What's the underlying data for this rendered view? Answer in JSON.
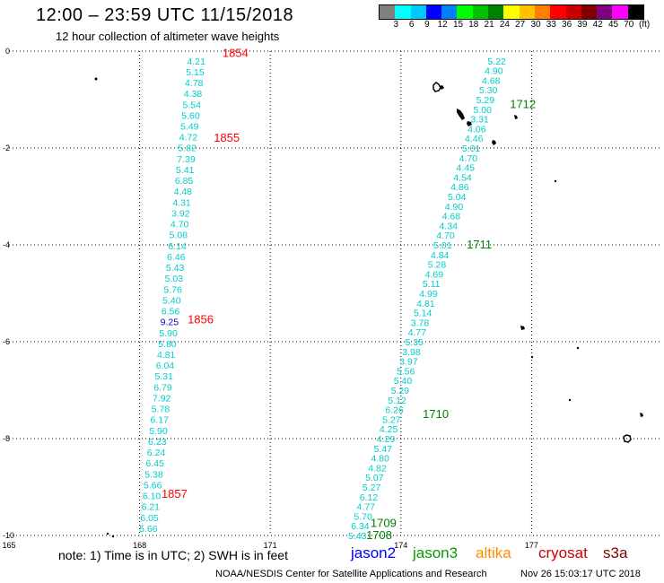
{
  "header": {
    "title": "12:00  –  23:59  UTC  11/15/2018",
    "subtitle": "12 hour collection of altimeter wave heights"
  },
  "legend": {
    "colors": [
      "#808080",
      "#00ffff",
      "#00c8ff",
      "#0000ff",
      "#0080ff",
      "#00ff00",
      "#00c000",
      "#008000",
      "#ffff00",
      "#ffc000",
      "#ff8000",
      "#ff0000",
      "#c80000",
      "#800000",
      "#800080",
      "#ff00ff",
      "#000000"
    ],
    "labels": [
      "3",
      "6",
      "9",
      "12",
      "15",
      "18",
      "21",
      "24",
      "27",
      "30",
      "33",
      "36",
      "39",
      "42",
      "45",
      "70",
      "(ft)"
    ]
  },
  "axes": {
    "x_ticks": [
      {
        "value": 165,
        "label": "165"
      },
      {
        "value": 168,
        "label": "168"
      },
      {
        "value": 171,
        "label": "171"
      },
      {
        "value": 174,
        "label": "174"
      },
      {
        "value": 177,
        "label": "177"
      }
    ],
    "y_ticks": [
      {
        "value": 0,
        "label": "0"
      },
      {
        "value": -2,
        "label": "-2"
      },
      {
        "value": -4,
        "label": "-4"
      },
      {
        "value": -6,
        "label": "-6"
      },
      {
        "value": -8,
        "label": "-8"
      },
      {
        "value": -10,
        "label": "-10"
      }
    ]
  },
  "tracks": [
    {
      "satellite": "cryosat",
      "lon_start": 169.3,
      "lat_start": -0.2,
      "lon_end": 168.2,
      "lat_end": -9.85,
      "values": [
        "4.21",
        "5.15",
        "4.78",
        "4.38",
        "5.54",
        "5.60",
        "5.49",
        "4.72",
        "5.82",
        "7.39",
        "5.41",
        "6.85",
        "4.48",
        "4.31",
        "3.92",
        "4.70",
        "5.08",
        "6.14",
        "6.46",
        "5.43",
        "5.03",
        "5.76",
        "5.40",
        "6.56",
        "9.25",
        "5.90",
        "5.80",
        "4.81",
        "6.04",
        "5.31",
        "6.79",
        "7.92",
        "5.78",
        "6.17",
        "5.90",
        "6.23",
        "6.24",
        "6.45",
        "5.38",
        "5.66",
        "6.10",
        "6.21",
        "6.05",
        "5.66"
      ]
    },
    {
      "satellite": "jason3",
      "lon_start": 176.2,
      "lat_start": -0.2,
      "lon_end": 173.0,
      "lat_end": -10.0,
      "values": [
        "5.22",
        "4.90",
        "4.68",
        "5.30",
        "5.29",
        "5.00",
        "3.31",
        "4.06",
        "4.46",
        "5.01",
        "4.70",
        "4.45",
        "4.54",
        "4.86",
        "5.04",
        "4.90",
        "4.68",
        "4.34",
        "4.70",
        "5.01",
        "4.84",
        "5.28",
        "4.69",
        "5.11",
        "4.99",
        "4.81",
        "5.14",
        "3.78",
        "4.77",
        "5.35",
        "3.98",
        "3.97",
        "5.56",
        "5.40",
        "5.29",
        "5.12",
        "6.26",
        "5.27",
        "4.25",
        "4.29",
        "5.47",
        "4.80",
        "4.82",
        "5.07",
        "5.27",
        "6.12",
        "4.77",
        "5.70",
        "6.34",
        "5.43"
      ]
    }
  ],
  "time_labels": [
    {
      "text": "1854",
      "lon": 170.2,
      "lat": -0.05,
      "color": "#ff0000"
    },
    {
      "text": "1855",
      "lon": 170.0,
      "lat": -1.8,
      "color": "#ff0000"
    },
    {
      "text": "1856",
      "lon": 169.4,
      "lat": -5.55,
      "color": "#ff0000"
    },
    {
      "text": "1857",
      "lon": 168.8,
      "lat": -9.15,
      "color": "#ff0000"
    },
    {
      "text": "1712",
      "lon": 176.8,
      "lat": -1.1,
      "color": "#008000"
    },
    {
      "text": "1711",
      "lon": 175.8,
      "lat": -4.0,
      "color": "#008000"
    },
    {
      "text": "1710",
      "lon": 174.8,
      "lat": -7.5,
      "color": "#008000"
    },
    {
      "text": "1709",
      "lon": 173.6,
      "lat": -9.75,
      "color": "#008000"
    },
    {
      "text": "1708",
      "lon": 173.5,
      "lat": -10.0,
      "color": "#008000"
    }
  ],
  "footer": {
    "note": "note:  1) Time is in UTC;  2) SWH is in feet",
    "satellites": [
      {
        "name": "jason2",
        "color": "#0000ff"
      },
      {
        "name": "jason3",
        "color": "#00a000"
      },
      {
        "name": "altika",
        "color": "#ff8c00"
      },
      {
        "name": "cryosat",
        "color": "#cc0000"
      },
      {
        "name": "s3a",
        "color": "#800000"
      }
    ],
    "credit": "NOAA/NESDIS Center for Satellite Applications and Research",
    "timestamp": "Nov 26 15:03:17 UTC 2018"
  },
  "colors": {
    "value_default": "#00cccc",
    "value_high": "#0000cc",
    "grid": "#000000"
  }
}
